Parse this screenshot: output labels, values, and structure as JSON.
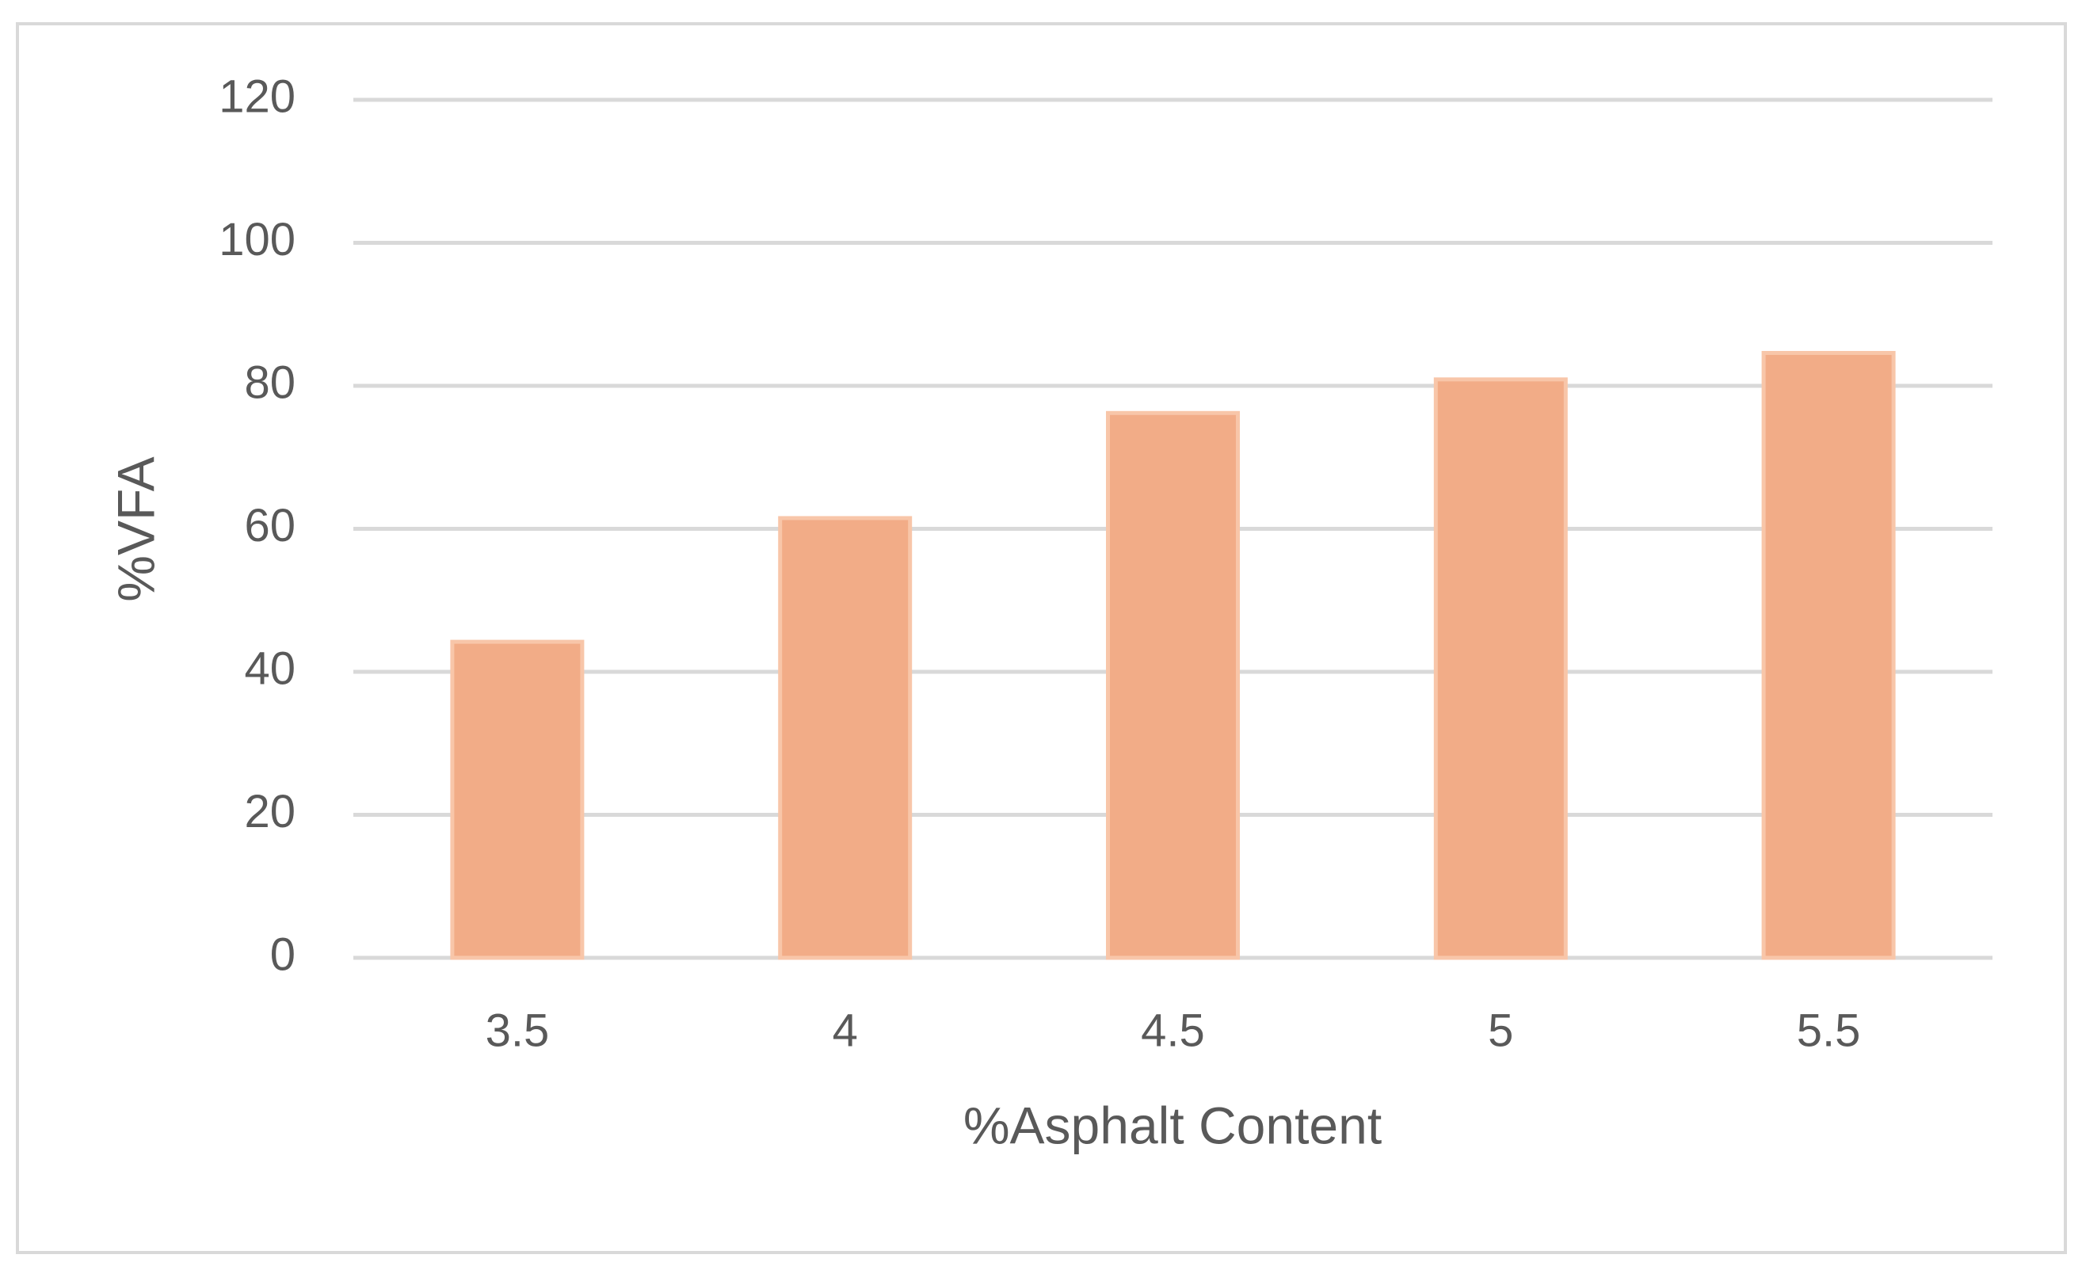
{
  "chart_data": {
    "type": "bar",
    "x_label": "%Asphalt Content",
    "y_label": "%VFA",
    "categories": [
      "3.5",
      "4",
      "4.5",
      "5",
      "5.5"
    ],
    "values": [
      44.2,
      61.5,
      76.2,
      80.9,
      84.6
    ],
    "color": "#f2ac87",
    "ylim": [
      0,
      120
    ],
    "yticks": [
      0,
      20,
      40,
      60,
      80,
      100,
      120
    ],
    "grid": true
  }
}
